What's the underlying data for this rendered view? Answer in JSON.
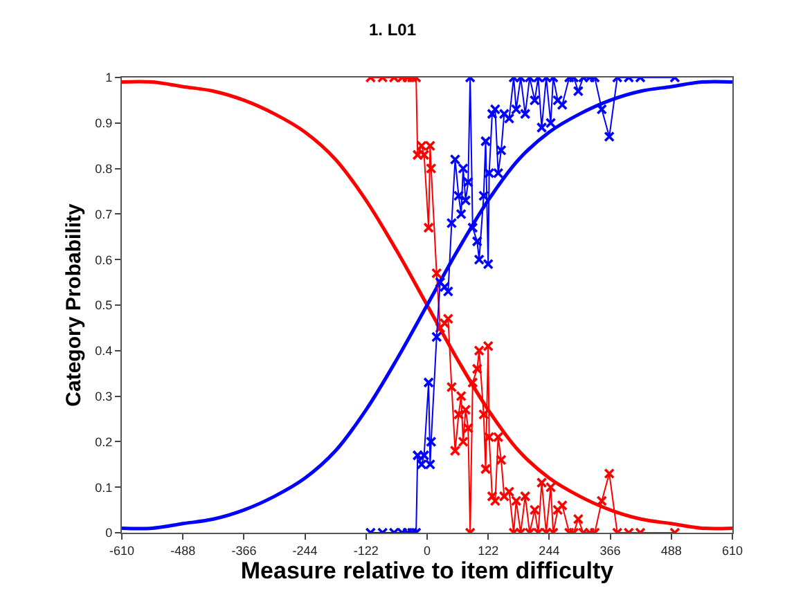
{
  "chart_data": {
    "type": "line",
    "title": "1. L01",
    "xlabel": "Measure relative to item difficulty",
    "ylabel": "Category Probability",
    "xlim": [
      -610,
      610
    ],
    "xticks": [
      -610,
      -488,
      -366,
      -244,
      -122,
      0,
      122,
      244,
      366,
      488,
      610
    ],
    "ylim": [
      0,
      1
    ],
    "yticks": [
      0,
      0.1,
      0.2,
      0.3,
      0.4,
      0.5,
      0.6,
      0.7,
      0.8,
      0.9,
      1
    ],
    "series": [
      {
        "color": "#ff0000",
        "marker": "none",
        "line_style": "solid",
        "x": [
          -610,
          -549,
          -488,
          -427,
          -366,
          -305,
          -244,
          -183,
          -122,
          -61,
          0,
          61,
          122,
          183,
          244,
          305,
          366,
          427,
          488,
          549,
          610
        ],
        "values": [
          0.99,
          0.99,
          0.98,
          0.97,
          0.95,
          0.92,
          0.88,
          0.82,
          0.73,
          0.62,
          0.5,
          0.38,
          0.27,
          0.18,
          0.12,
          0.08,
          0.05,
          0.03,
          0.02,
          0.01,
          0.01
        ]
      },
      {
        "color": "#0000ff",
        "marker": "none",
        "line_style": "solid",
        "x": [
          -610,
          -549,
          -488,
          -427,
          -366,
          -305,
          -244,
          -183,
          -122,
          -61,
          0,
          61,
          122,
          183,
          244,
          305,
          366,
          427,
          488,
          549,
          610
        ],
        "values": [
          0.01,
          0.01,
          0.02,
          0.03,
          0.05,
          0.08,
          0.12,
          0.18,
          0.27,
          0.38,
          0.5,
          0.62,
          0.73,
          0.82,
          0.88,
          0.92,
          0.95,
          0.97,
          0.98,
          0.99,
          0.99
        ]
      },
      {
        "color": "#ff0000",
        "marker": "cross",
        "line_style": "solid",
        "x": [
          -113,
          -89,
          -66,
          -50,
          -39,
          -30,
          -22,
          -19,
          -11,
          -6,
          3,
          6,
          8,
          19,
          26,
          35,
          42,
          49,
          56,
          63,
          68,
          72,
          77,
          82,
          86,
          91,
          100,
          104,
          113,
          117,
          122,
          124,
          130,
          136,
          142,
          148,
          154,
          164,
          173,
          178,
          187,
          196,
          205,
          215,
          222,
          229,
          238,
          247,
          252,
          261,
          270,
          284,
          293,
          302,
          312,
          325,
          335,
          349,
          364,
          380,
          403,
          426,
          495
        ],
        "values": [
          1,
          1,
          1,
          1,
          1,
          1,
          1,
          0.83,
          0.85,
          0.83,
          0.67,
          0.85,
          0.8,
          0.57,
          0.45,
          0.46,
          0.47,
          0.32,
          0.18,
          0.26,
          0.3,
          0.2,
          0.27,
          0.23,
          0,
          0.33,
          0.36,
          0.4,
          0.26,
          0.14,
          0.41,
          0.21,
          0.08,
          0.07,
          0.21,
          0.16,
          0.08,
          0.09,
          0,
          0.07,
          0,
          0.08,
          0,
          0.05,
          0,
          0.11,
          0,
          0.1,
          0,
          0.05,
          0.06,
          0,
          0,
          0.03,
          0,
          0,
          0,
          0.07,
          0.13,
          0,
          0,
          0,
          0
        ]
      },
      {
        "color": "#0000ff",
        "marker": "cross",
        "line_style": "solid",
        "x": [
          -113,
          -89,
          -66,
          -50,
          -39,
          -30,
          -22,
          -19,
          -11,
          -6,
          3,
          6,
          8,
          19,
          26,
          35,
          42,
          49,
          56,
          63,
          68,
          72,
          77,
          82,
          86,
          91,
          100,
          104,
          113,
          117,
          122,
          124,
          130,
          136,
          142,
          148,
          154,
          164,
          173,
          178,
          187,
          196,
          205,
          215,
          222,
          229,
          238,
          247,
          252,
          261,
          270,
          284,
          293,
          302,
          312,
          325,
          335,
          349,
          364,
          380,
          403,
          426,
          495
        ],
        "values": [
          0,
          0,
          0,
          0,
          0,
          0,
          0,
          0.17,
          0.15,
          0.17,
          0.33,
          0.15,
          0.2,
          0.43,
          0.55,
          0.54,
          0.53,
          0.68,
          0.82,
          0.74,
          0.7,
          0.8,
          0.73,
          0.77,
          1,
          0.67,
          0.64,
          0.6,
          0.74,
          0.86,
          0.59,
          0.79,
          0.92,
          0.93,
          0.79,
          0.84,
          0.92,
          0.91,
          1,
          0.93,
          1,
          0.92,
          1,
          0.95,
          1,
          0.89,
          1,
          0.9,
          1,
          0.95,
          0.94,
          1,
          1,
          0.97,
          1,
          1,
          1,
          0.93,
          0.87,
          1,
          1,
          1,
          1
        ]
      }
    ]
  }
}
